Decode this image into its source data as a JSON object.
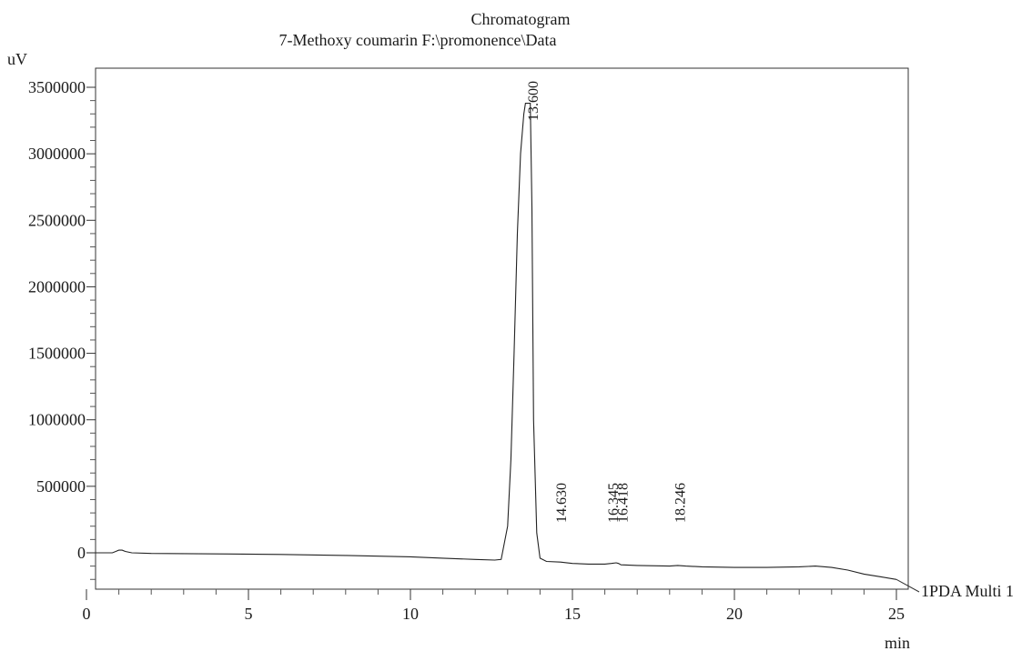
{
  "chart_data": {
    "type": "line",
    "title": "Chromatogram",
    "subtitle": "7-Methoxy coumarin F:\\promonence\\Data",
    "ylabel": "uV",
    "xlabel": "min",
    "xlim": [
      0,
      25
    ],
    "ylim": [
      -350000,
      3650000
    ],
    "x_ticks": [
      0,
      5,
      10,
      15,
      20,
      25
    ],
    "y_ticks": [
      0,
      500000,
      1000000,
      1500000,
      2000000,
      2500000,
      3000000,
      3500000
    ],
    "x_tick_labels": [
      "0",
      "5",
      "10",
      "15",
      "20",
      "25"
    ],
    "y_tick_labels": [
      "0",
      "500000",
      "1000000",
      "1500000",
      "2000000",
      "2500000",
      "3000000",
      "3500000"
    ],
    "series": [
      {
        "name": "1PDA Multi 1",
        "x": [
          0,
          0.8,
          1.0,
          1.1,
          1.2,
          1.4,
          2,
          4,
          6,
          8,
          10,
          11,
          12,
          12.6,
          12.8,
          13.0,
          13.1,
          13.2,
          13.3,
          13.4,
          13.5,
          13.55,
          13.6,
          13.65,
          13.7,
          13.75,
          13.8,
          13.9,
          14.0,
          14.2,
          14.63,
          15,
          15.5,
          16,
          16.2,
          16.35,
          16.42,
          16.5,
          17,
          18,
          18.25,
          18.5,
          19,
          20,
          21,
          22,
          22.5,
          23,
          23.5,
          24,
          24.5,
          25
        ],
        "y": [
          0,
          0,
          20000,
          20000,
          10000,
          0,
          -5000,
          -8000,
          -12000,
          -20000,
          -30000,
          -40000,
          -50000,
          -55000,
          -50000,
          200000,
          700000,
          1500000,
          2400000,
          3000000,
          3300000,
          3380000,
          3380000,
          3380000,
          3380000,
          2600000,
          1000000,
          150000,
          -40000,
          -65000,
          -70000,
          -80000,
          -85000,
          -85000,
          -80000,
          -75000,
          -80000,
          -90000,
          -95000,
          -100000,
          -95000,
          -100000,
          -105000,
          -110000,
          -110000,
          -105000,
          -100000,
          -110000,
          -130000,
          -160000,
          -180000,
          -200000
        ]
      }
    ],
    "peak_labels": [
      {
        "x": 13.6,
        "label": "13.600"
      },
      {
        "x": 14.63,
        "label": "14.630"
      },
      {
        "x": 16.345,
        "label": "16.345"
      },
      {
        "x": 16.418,
        "label": "16.418"
      },
      {
        "x": 18.246,
        "label": "18.246"
      }
    ],
    "grid": false,
    "legend_position": "right"
  }
}
